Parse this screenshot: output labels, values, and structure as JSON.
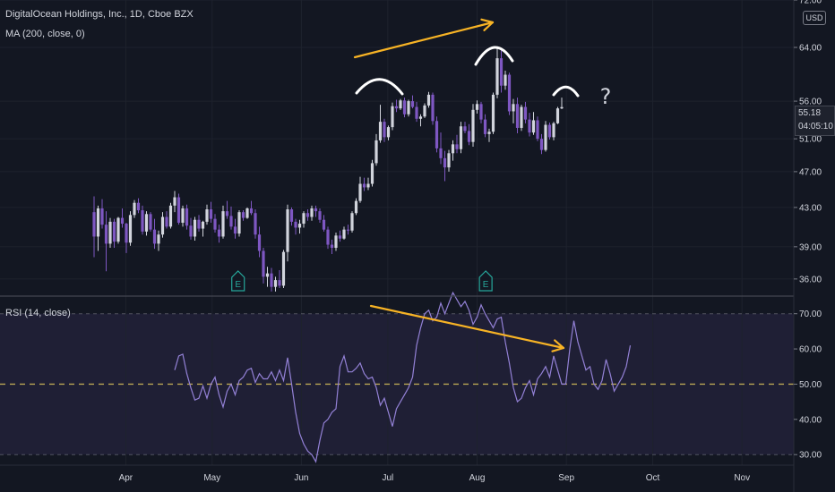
{
  "header": {
    "title": "DigitalOcean Holdings, Inc., 1D, Cboe BZX",
    "indicator": "MA (200, close, 0)",
    "currency": "USD"
  },
  "price_tag": {
    "price": "55.18",
    "countdown": "04:05:10"
  },
  "annotations": {
    "question": "?",
    "earnings": "E"
  },
  "colors": {
    "up": "#d1d4dc",
    "down": "#7e57c2",
    "rsi": "#9381d6",
    "arrow": "#f7b325",
    "mid": "#c9b458",
    "bg": "#131722"
  },
  "chart_data": [
    {
      "type": "candlestick",
      "title": "DigitalOcean Holdings, Inc., 1D, Cboe BZX",
      "indicator": "MA (200, close, 0)",
      "y_ticks": [
        "72.00",
        "64.00",
        "56.00",
        "51.00",
        "47.00",
        "43.00",
        "39.00",
        "36.00"
      ],
      "x_ticks": [
        "Apr",
        "May",
        "Jun",
        "Jul",
        "Aug",
        "Sep",
        "Oct",
        "Nov"
      ],
      "ylim": [
        34.5,
        72
      ],
      "scale": "log",
      "earnings_markers": [
        "2022-05-10",
        "2022-08-04"
      ],
      "start_date": "2022-03-21",
      "ohlc": [
        [
          42.5,
          44.2,
          38.0,
          40.0
        ],
        [
          40.0,
          43.2,
          38.6,
          42.9
        ],
        [
          42.9,
          43.9,
          40.8,
          41.2
        ],
        [
          41.2,
          42.6,
          36.7,
          39.3
        ],
        [
          39.3,
          41.9,
          38.9,
          41.5
        ],
        [
          41.5,
          41.8,
          38.9,
          39.5
        ],
        [
          39.5,
          42.0,
          39.3,
          41.9
        ],
        [
          41.9,
          42.9,
          40.9,
          41.3
        ],
        [
          41.3,
          41.4,
          38.4,
          39.4
        ],
        [
          39.4,
          42.6,
          39.1,
          42.2
        ],
        [
          42.2,
          43.8,
          41.9,
          43.5
        ],
        [
          43.5,
          44.0,
          42.4,
          42.7
        ],
        [
          42.7,
          43.2,
          40.2,
          40.5
        ],
        [
          40.5,
          42.6,
          40.1,
          42.3
        ],
        [
          42.3,
          42.5,
          40.5,
          40.7
        ],
        [
          40.7,
          41.8,
          38.8,
          39.3
        ],
        [
          39.3,
          40.6,
          38.6,
          40.2
        ],
        [
          40.2,
          42.5,
          39.9,
          42.0
        ],
        [
          42.0,
          42.6,
          40.8,
          41.0
        ],
        [
          41.0,
          43.5,
          40.8,
          43.2
        ],
        [
          43.2,
          44.8,
          42.5,
          44.1
        ],
        [
          44.1,
          44.5,
          41.2,
          41.4
        ],
        [
          41.4,
          43.2,
          41.0,
          42.9
        ],
        [
          42.9,
          43.3,
          40.7,
          41.1
        ],
        [
          41.1,
          41.9,
          39.7,
          40.0
        ],
        [
          40.0,
          42.0,
          39.6,
          41.7
        ],
        [
          41.7,
          42.2,
          40.5,
          40.8
        ],
        [
          40.8,
          41.6,
          40.0,
          41.5
        ],
        [
          41.5,
          43.3,
          41.2,
          42.8
        ],
        [
          42.8,
          43.6,
          41.4,
          41.8
        ],
        [
          41.8,
          42.3,
          40.4,
          40.7
        ],
        [
          40.7,
          41.2,
          39.4,
          40.0
        ],
        [
          40.0,
          43.2,
          39.8,
          42.6
        ],
        [
          42.6,
          43.7,
          41.8,
          42.1
        ],
        [
          42.1,
          43.1,
          40.7,
          41.0
        ],
        [
          41.0,
          41.8,
          39.8,
          40.3
        ],
        [
          40.3,
          42.7,
          40.0,
          42.5
        ],
        [
          42.5,
          42.7,
          41.6,
          41.9
        ],
        [
          41.9,
          43.0,
          41.8,
          42.9
        ],
        [
          42.9,
          43.7,
          42.2,
          42.4
        ],
        [
          42.4,
          42.8,
          39.8,
          40.2
        ],
        [
          40.2,
          41.0,
          38.0,
          38.6
        ],
        [
          38.6,
          38.9,
          35.6,
          36.2
        ],
        [
          36.2,
          37.1,
          35.3,
          36.5
        ],
        [
          36.5,
          37.0,
          34.9,
          35.3
        ],
        [
          35.3,
          36.2,
          34.9,
          35.9
        ],
        [
          35.9,
          36.8,
          35.2,
          35.4
        ],
        [
          35.4,
          38.7,
          35.2,
          38.5
        ],
        [
          38.5,
          43.3,
          37.6,
          42.8
        ],
        [
          42.8,
          43.0,
          41.1,
          41.5
        ],
        [
          41.5,
          41.8,
          40.2,
          40.9
        ],
        [
          40.9,
          41.7,
          40.3,
          41.3
        ],
        [
          41.3,
          42.6,
          40.9,
          42.4
        ],
        [
          42.4,
          42.8,
          41.6,
          42.0
        ],
        [
          42.0,
          43.2,
          41.6,
          42.9
        ],
        [
          42.9,
          43.2,
          42.0,
          42.6
        ],
        [
          42.6,
          42.9,
          41.4,
          41.7
        ],
        [
          41.7,
          42.2,
          40.5,
          40.7
        ],
        [
          40.7,
          41.0,
          38.8,
          39.2
        ],
        [
          39.2,
          39.7,
          38.3,
          38.9
        ],
        [
          38.9,
          40.4,
          38.6,
          40.1
        ],
        [
          40.1,
          40.6,
          39.5,
          39.8
        ],
        [
          39.8,
          41.0,
          39.7,
          40.7
        ],
        [
          40.7,
          41.2,
          40.2,
          40.6
        ],
        [
          40.6,
          42.6,
          40.4,
          42.4
        ],
        [
          42.4,
          44.0,
          42.2,
          43.7
        ],
        [
          43.7,
          46.4,
          43.5,
          45.6
        ],
        [
          45.6,
          46.3,
          44.8,
          45.2
        ],
        [
          45.2,
          46.3,
          44.9,
          45.6
        ],
        [
          45.6,
          48.4,
          45.3,
          48.0
        ],
        [
          48.0,
          51.6,
          47.7,
          50.8
        ],
        [
          50.8,
          55.5,
          50.5,
          53.2
        ],
        [
          53.2,
          53.6,
          50.6,
          51.2
        ],
        [
          51.2,
          52.7,
          50.8,
          52.5
        ],
        [
          52.5,
          55.8,
          52.1,
          55.3
        ],
        [
          55.3,
          56.2,
          54.5,
          55.0
        ],
        [
          55.0,
          56.3,
          54.8,
          56.1
        ],
        [
          56.1,
          56.5,
          53.8,
          54.2
        ],
        [
          54.2,
          56.2,
          53.9,
          56.0
        ],
        [
          56.0,
          56.8,
          55.0,
          55.2
        ],
        [
          55.2,
          55.9,
          53.2,
          53.6
        ],
        [
          53.6,
          54.2,
          52.6,
          53.9
        ],
        [
          53.9,
          55.7,
          53.7,
          55.4
        ],
        [
          55.4,
          57.3,
          55.1,
          56.9
        ],
        [
          56.9,
          57.2,
          52.8,
          53.3
        ],
        [
          53.3,
          53.9,
          49.3,
          49.8
        ],
        [
          49.8,
          51.8,
          47.9,
          48.6
        ],
        [
          48.6,
          49.5,
          45.9,
          47.5
        ],
        [
          47.5,
          49.6,
          47.0,
          49.2
        ],
        [
          49.2,
          50.8,
          48.3,
          50.3
        ],
        [
          50.3,
          51.5,
          49.2,
          49.7
        ],
        [
          49.7,
          53.2,
          49.2,
          52.6
        ],
        [
          52.6,
          53.2,
          51.7,
          52.0
        ],
        [
          52.0,
          52.9,
          50.2,
          50.6
        ],
        [
          50.6,
          55.6,
          50.0,
          54.8
        ],
        [
          54.8,
          56.1,
          54.3,
          55.6
        ],
        [
          55.6,
          55.9,
          53.0,
          53.5
        ],
        [
          53.5,
          54.2,
          51.2,
          51.6
        ],
        [
          51.6,
          52.3,
          50.6,
          51.9
        ],
        [
          51.9,
          57.2,
          51.6,
          56.9
        ],
        [
          56.9,
          63.8,
          56.4,
          62.3
        ],
        [
          62.3,
          63.5,
          57.2,
          58.2
        ],
        [
          58.2,
          60.4,
          57.6,
          59.8
        ],
        [
          59.8,
          60.1,
          54.1,
          54.6
        ],
        [
          54.6,
          56.3,
          53.0,
          55.6
        ],
        [
          55.6,
          56.5,
          51.7,
          52.4
        ],
        [
          52.4,
          55.5,
          52.0,
          55.2
        ],
        [
          55.2,
          55.9,
          53.0,
          53.5
        ],
        [
          53.5,
          54.4,
          51.3,
          51.8
        ],
        [
          51.8,
          54.5,
          51.5,
          53.4
        ],
        [
          53.4,
          53.9,
          50.7,
          51.0
        ],
        [
          51.0,
          51.6,
          49.1,
          49.6
        ],
        [
          49.6,
          53.3,
          49.4,
          52.8
        ],
        [
          52.8,
          53.1,
          50.9,
          51.2
        ],
        [
          51.2,
          53.2,
          50.8,
          53.0
        ],
        [
          53.0,
          55.2,
          52.9,
          55.0
        ],
        [
          55.0,
          56.5,
          54.9,
          55.18
        ]
      ]
    },
    {
      "type": "line",
      "title": "RSI (14, close)",
      "y_ticks": [
        "70.00",
        "60.00",
        "50.00",
        "40.00",
        "30.00"
      ],
      "ylim": [
        27,
        75
      ],
      "levels": [
        70,
        50,
        30
      ],
      "series": [
        {
          "start_index": 20,
          "values": [
            54,
            58,
            58.5,
            53,
            49,
            45.5,
            46,
            49.5,
            46,
            50,
            52,
            47,
            43.5,
            48,
            50,
            47,
            51,
            52,
            54,
            54.5,
            50.5,
            53,
            51.5,
            51.5,
            53.5,
            51,
            54,
            51,
            57.5,
            50,
            42,
            36,
            33,
            31,
            30,
            28,
            34,
            39,
            40,
            42,
            43,
            55,
            58,
            53.5,
            53.5,
            54.5,
            56,
            53,
            51.5,
            52,
            49,
            44,
            46,
            42,
            38,
            43,
            45,
            47,
            49,
            52,
            61,
            66,
            70,
            71,
            68,
            69,
            73,
            70,
            73,
            76,
            74,
            72,
            73.5,
            71,
            67,
            69,
            72.5,
            70,
            68,
            66,
            68.5,
            69,
            62,
            56,
            49,
            45,
            46,
            49,
            51,
            47,
            51.5,
            53,
            55,
            52,
            58,
            54,
            50,
            50,
            60,
            68,
            62,
            58,
            54,
            55,
            50,
            48.5,
            51,
            57,
            53,
            48,
            50,
            52,
            55,
            61
          ]
        }
      ]
    }
  ]
}
